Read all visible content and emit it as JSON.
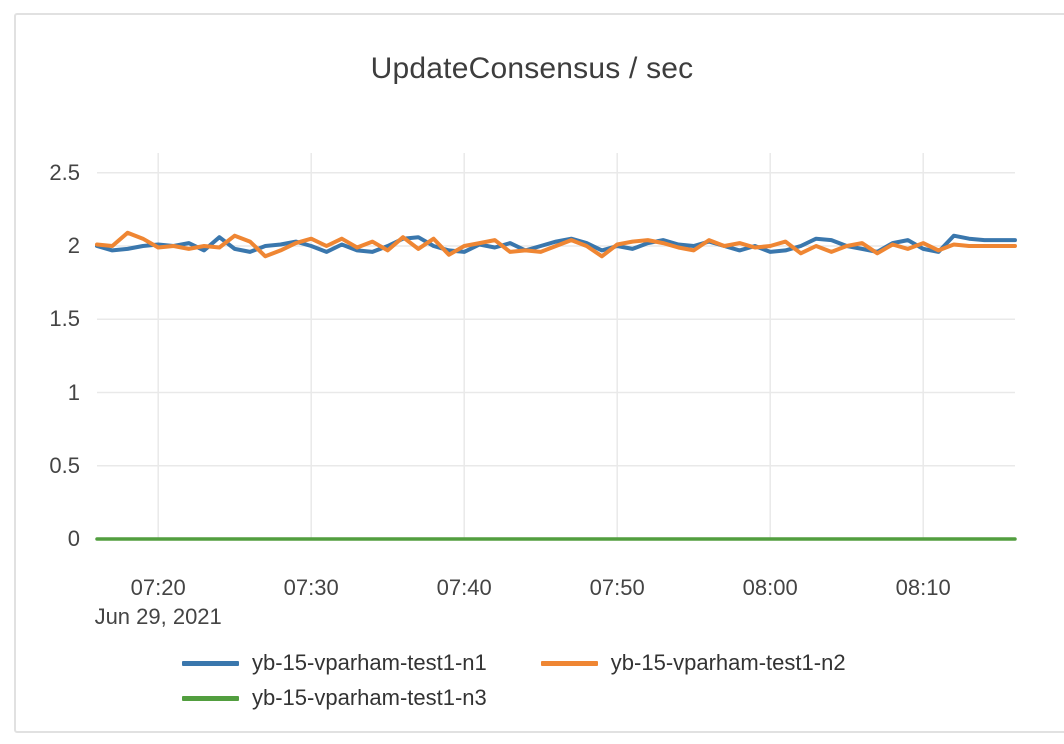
{
  "chart": {
    "title": "UpdateConsensus / sec",
    "date_label": "Jun 29, 2021"
  },
  "chart_data": {
    "type": "line",
    "title": "UpdateConsensus / sec",
    "xlabel": "",
    "ylabel": "",
    "x_date": "Jun 29, 2021",
    "xticks": [
      "07:20",
      "07:30",
      "07:40",
      "07:50",
      "08:00",
      "08:10"
    ],
    "yticks": [
      "2.5",
      "2",
      "1.5",
      "1",
      "0.5",
      "0"
    ],
    "ylim": [
      0,
      2.5
    ],
    "grid": true,
    "grid_color": "#e9e9e9",
    "border_color": "#e1e1e1",
    "legend_position": "bottom",
    "x": [
      "07:16",
      "07:17",
      "07:18",
      "07:19",
      "07:20",
      "07:21",
      "07:22",
      "07:23",
      "07:24",
      "07:25",
      "07:26",
      "07:27",
      "07:28",
      "07:29",
      "07:30",
      "07:31",
      "07:32",
      "07:33",
      "07:34",
      "07:35",
      "07:36",
      "07:37",
      "07:38",
      "07:39",
      "07:40",
      "07:41",
      "07:42",
      "07:43",
      "07:44",
      "07:45",
      "07:46",
      "07:47",
      "07:48",
      "07:49",
      "07:50",
      "07:51",
      "07:52",
      "07:53",
      "07:54",
      "07:55",
      "07:56",
      "07:57",
      "07:58",
      "07:59",
      "08:00",
      "08:01",
      "08:02",
      "08:03",
      "08:04",
      "08:05",
      "08:06",
      "08:07",
      "08:08",
      "08:09",
      "08:10",
      "08:11",
      "08:12",
      "08:13",
      "08:14",
      "08:15",
      "08:16"
    ],
    "series": [
      {
        "name": "yb-15-vparham-test1-n1",
        "color": "#3a77ad",
        "values": [
          2.0,
          1.97,
          1.98,
          2.0,
          2.01,
          2.0,
          2.02,
          1.97,
          2.06,
          1.98,
          1.96,
          2.0,
          2.01,
          2.03,
          2.0,
          1.96,
          2.01,
          1.97,
          1.96,
          2.0,
          2.05,
          2.06,
          2.0,
          1.97,
          1.96,
          2.01,
          1.99,
          2.02,
          1.97,
          2.0,
          2.03,
          2.05,
          2.02,
          1.97,
          2.0,
          1.98,
          2.02,
          2.04,
          2.01,
          2.0,
          2.03,
          2.0,
          1.97,
          2.0,
          1.96,
          1.97,
          2.0,
          2.05,
          2.04,
          2.0,
          1.98,
          1.96,
          2.02,
          2.04,
          1.98,
          1.96,
          2.07,
          2.05,
          2.04,
          2.04,
          2.04
        ]
      },
      {
        "name": "yb-15-vparham-test1-n2",
        "color": "#ef8633",
        "values": [
          2.01,
          2.0,
          2.09,
          2.05,
          1.99,
          2.0,
          1.98,
          2.0,
          1.99,
          2.07,
          2.03,
          1.93,
          1.97,
          2.02,
          2.05,
          2.0,
          2.05,
          1.99,
          2.03,
          1.97,
          2.06,
          1.98,
          2.05,
          1.94,
          2.0,
          2.02,
          2.04,
          1.96,
          1.97,
          1.96,
          2.0,
          2.04,
          2.0,
          1.93,
          2.01,
          2.03,
          2.04,
          2.02,
          1.99,
          1.97,
          2.04,
          2.0,
          2.02,
          1.99,
          2.0,
          2.03,
          1.95,
          2.0,
          1.96,
          2.0,
          2.02,
          1.95,
          2.01,
          1.98,
          2.02,
          1.97,
          2.01,
          2.0,
          2.0,
          2.0,
          2.0
        ]
      },
      {
        "name": "yb-15-vparham-test1-n3",
        "color": "#529e3f",
        "values": [
          0,
          0,
          0,
          0,
          0,
          0,
          0,
          0,
          0,
          0,
          0,
          0,
          0,
          0,
          0,
          0,
          0,
          0,
          0,
          0,
          0,
          0,
          0,
          0,
          0,
          0,
          0,
          0,
          0,
          0,
          0,
          0,
          0,
          0,
          0,
          0,
          0,
          0,
          0,
          0,
          0,
          0,
          0,
          0,
          0,
          0,
          0,
          0,
          0,
          0,
          0,
          0,
          0,
          0,
          0,
          0,
          0,
          0,
          0,
          0,
          0
        ]
      }
    ]
  }
}
